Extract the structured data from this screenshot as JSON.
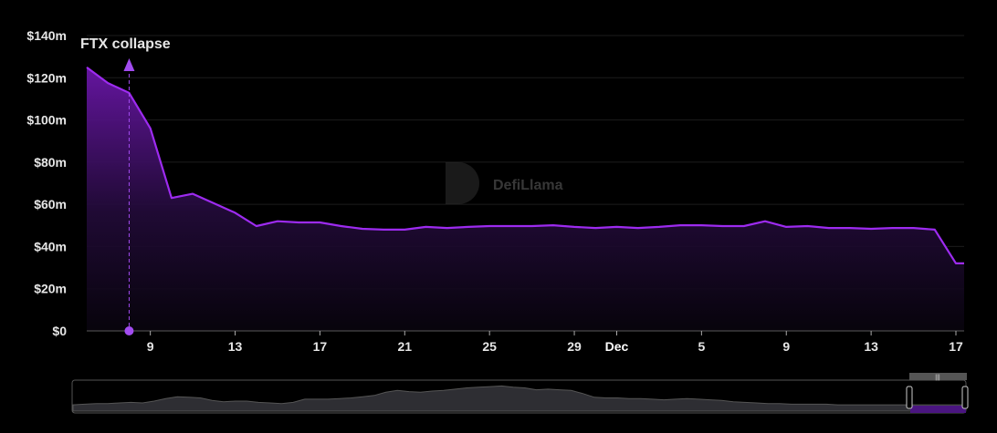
{
  "chart_data": {
    "type": "area",
    "title": "",
    "xlabel": "",
    "ylabel": "",
    "ylim": [
      0,
      140
    ],
    "y_unit": "$m",
    "y_ticks": [
      "$0",
      "$20m",
      "$40m",
      "$60m",
      "$80m",
      "$100m",
      "$120m",
      "$140m"
    ],
    "y_tick_values": [
      0,
      20,
      40,
      60,
      80,
      100,
      120,
      140
    ],
    "x_start": "Nov 6",
    "x_end": "Dec 17",
    "x_ticks": [
      {
        "label": "9",
        "date": "Nov 9",
        "bold": false
      },
      {
        "label": "13",
        "date": "Nov 13",
        "bold": false
      },
      {
        "label": "17",
        "date": "Nov 17",
        "bold": false
      },
      {
        "label": "21",
        "date": "Nov 21",
        "bold": false
      },
      {
        "label": "25",
        "date": "Nov 25",
        "bold": false
      },
      {
        "label": "29",
        "date": "Nov 29",
        "bold": false
      },
      {
        "label": "Dec",
        "date": "Dec 1",
        "bold": true
      },
      {
        "label": "5",
        "date": "Dec 5",
        "bold": false
      },
      {
        "label": "9",
        "date": "Dec 9",
        "bold": false
      },
      {
        "label": "13",
        "date": "Dec 13",
        "bold": false
      },
      {
        "label": "17",
        "date": "Dec 17",
        "bold": false
      }
    ],
    "grid": true,
    "series": [
      {
        "dates": [
          "Nov 6",
          "Nov 7",
          "Nov 8",
          "Nov 9",
          "Nov 10",
          "Nov 11",
          "Nov 12",
          "Nov 13",
          "Nov 14",
          "Nov 15",
          "Nov 16",
          "Nov 17",
          "Nov 18",
          "Nov 19",
          "Nov 20",
          "Nov 21",
          "Nov 22",
          "Nov 23",
          "Nov 24",
          "Nov 25",
          "Nov 26",
          "Nov 27",
          "Nov 28",
          "Nov 29",
          "Nov 30",
          "Dec 1",
          "Dec 2",
          "Dec 3",
          "Dec 4",
          "Dec 5",
          "Dec 6",
          "Dec 7",
          "Dec 8",
          "Dec 9",
          "Dec 10",
          "Dec 11",
          "Dec 12",
          "Dec 13",
          "Dec 14",
          "Dec 15",
          "Dec 16",
          "Dec 17"
        ],
        "values": [
          124.9,
          117.5,
          112.8,
          96,
          63,
          65,
          60.5,
          56,
          49.7,
          52,
          51.4,
          51.4,
          49.7,
          48.4,
          48,
          48,
          49.3,
          48.8,
          49.3,
          49.7,
          49.7,
          49.7,
          50.1,
          49.3,
          48.8,
          49.3,
          48.8,
          49.3,
          50.1,
          50.1,
          49.7,
          49.7,
          52,
          49.3,
          49.7,
          48.8,
          48.8,
          48.4,
          48.8,
          48.8,
          48,
          32
        ]
      }
    ],
    "annotation": {
      "label": "FTX collapse",
      "date": "Nov 8"
    },
    "watermark": "DefiLlama",
    "colors": {
      "line": "#9d2bf0",
      "fill_top": "#6a16a8",
      "annotation": "#a24cf0",
      "overview": "#2e2e33"
    },
    "overview_values": [
      10,
      11,
      12,
      12,
      13,
      14,
      13,
      16,
      20,
      23,
      22,
      21,
      17,
      15,
      16,
      16,
      14,
      13,
      12,
      14,
      19,
      19,
      19,
      20,
      21,
      23,
      25,
      30,
      33,
      31,
      30,
      32,
      33,
      35,
      37,
      38,
      39,
      40,
      38,
      37,
      34,
      35,
      34,
      33,
      28,
      22,
      21,
      21,
      20,
      20,
      19,
      18,
      19,
      20,
      19,
      18,
      17,
      15,
      14,
      13,
      12,
      12,
      11,
      11,
      11,
      11,
      10,
      10,
      10,
      10,
      10,
      10,
      10,
      10,
      10,
      10,
      10,
      10
    ]
  }
}
